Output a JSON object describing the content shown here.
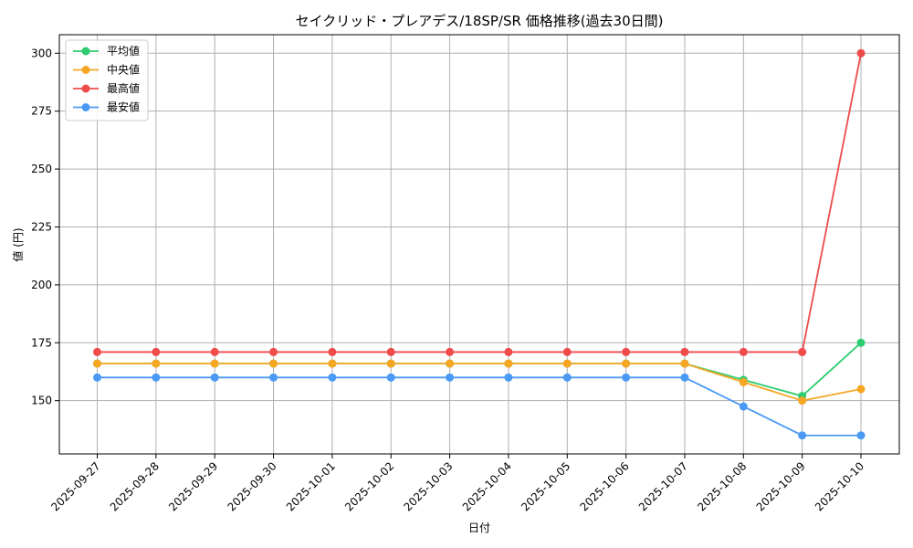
{
  "chart_data": {
    "type": "line",
    "title": "セイクリッド・プレアデス/18SP/SR 価格推移(過去30日間)",
    "xlabel": "日付",
    "ylabel": "値 (円)",
    "categories": [
      "2025-09-27",
      "2025-09-28",
      "2025-09-29",
      "2025-09-30",
      "2025-10-01",
      "2025-10-02",
      "2025-10-03",
      "2025-10-04",
      "2025-10-05",
      "2025-10-06",
      "2025-10-07",
      "2025-10-08",
      "2025-10-09",
      "2025-10-10"
    ],
    "ylim": [
      127,
      308
    ],
    "yticks": [
      150,
      175,
      200,
      225,
      250,
      275,
      300
    ],
    "grid": true,
    "legend_position": "top-left",
    "series": [
      {
        "name": "平均値",
        "color": "#2ecc71",
        "values": [
          166,
          166,
          166,
          166,
          166,
          166,
          166,
          166,
          166,
          166,
          166,
          159,
          152,
          175
        ]
      },
      {
        "name": "中央値",
        "color": "#f5a623",
        "values": [
          166,
          166,
          166,
          166,
          166,
          166,
          166,
          166,
          166,
          166,
          166,
          158,
          150,
          155
        ]
      },
      {
        "name": "最高値",
        "color": "#ef4b4b",
        "values": [
          171,
          171,
          171,
          171,
          171,
          171,
          171,
          171,
          171,
          171,
          171,
          171,
          171,
          300
        ]
      },
      {
        "name": "最安値",
        "color": "#4a9af5",
        "values": [
          160,
          160,
          160,
          160,
          160,
          160,
          160,
          160,
          160,
          160,
          160,
          147.5,
          135,
          135
        ]
      }
    ]
  }
}
